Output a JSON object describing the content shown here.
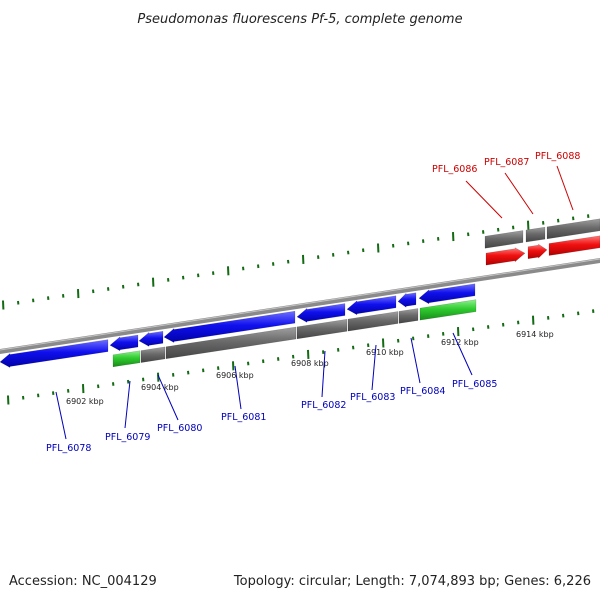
{
  "title": "Pseudomonas fluorescens Pf-5, complete genome",
  "footer": {
    "accession": "Accession: NC_004129",
    "summary": "Topology: circular; Length: 7,074,893 bp; Genes: 6,226"
  },
  "colors": {
    "forward": "#0000ee",
    "reverse": "#ee0000",
    "gray": "#666666",
    "green": "#22bb22",
    "tick": "#116611",
    "backbone": "#888888",
    "blue_label": "#0000bb",
    "red_label": "#cc0000"
  },
  "scale_labels": [
    "6902 kbp",
    "6904 kbp",
    "6906 kbp",
    "6908 kbp",
    "6910 kbp",
    "6912 kbp",
    "6914 kbp"
  ],
  "gene_labels": [
    {
      "text": "PFL_6078",
      "color": "blue"
    },
    {
      "text": "PFL_6079",
      "color": "blue"
    },
    {
      "text": "PFL_6080",
      "color": "blue"
    },
    {
      "text": "PFL_6081",
      "color": "blue"
    },
    {
      "text": "PFL_6082",
      "color": "blue"
    },
    {
      "text": "PFL_6083",
      "color": "blue"
    },
    {
      "text": "PFL_6084",
      "color": "blue"
    },
    {
      "text": "PFL_6085",
      "color": "blue"
    },
    {
      "text": "PFL_6086",
      "color": "red"
    },
    {
      "text": "PFL_6087",
      "color": "red"
    },
    {
      "text": "PFL_6088",
      "color": "red"
    }
  ]
}
